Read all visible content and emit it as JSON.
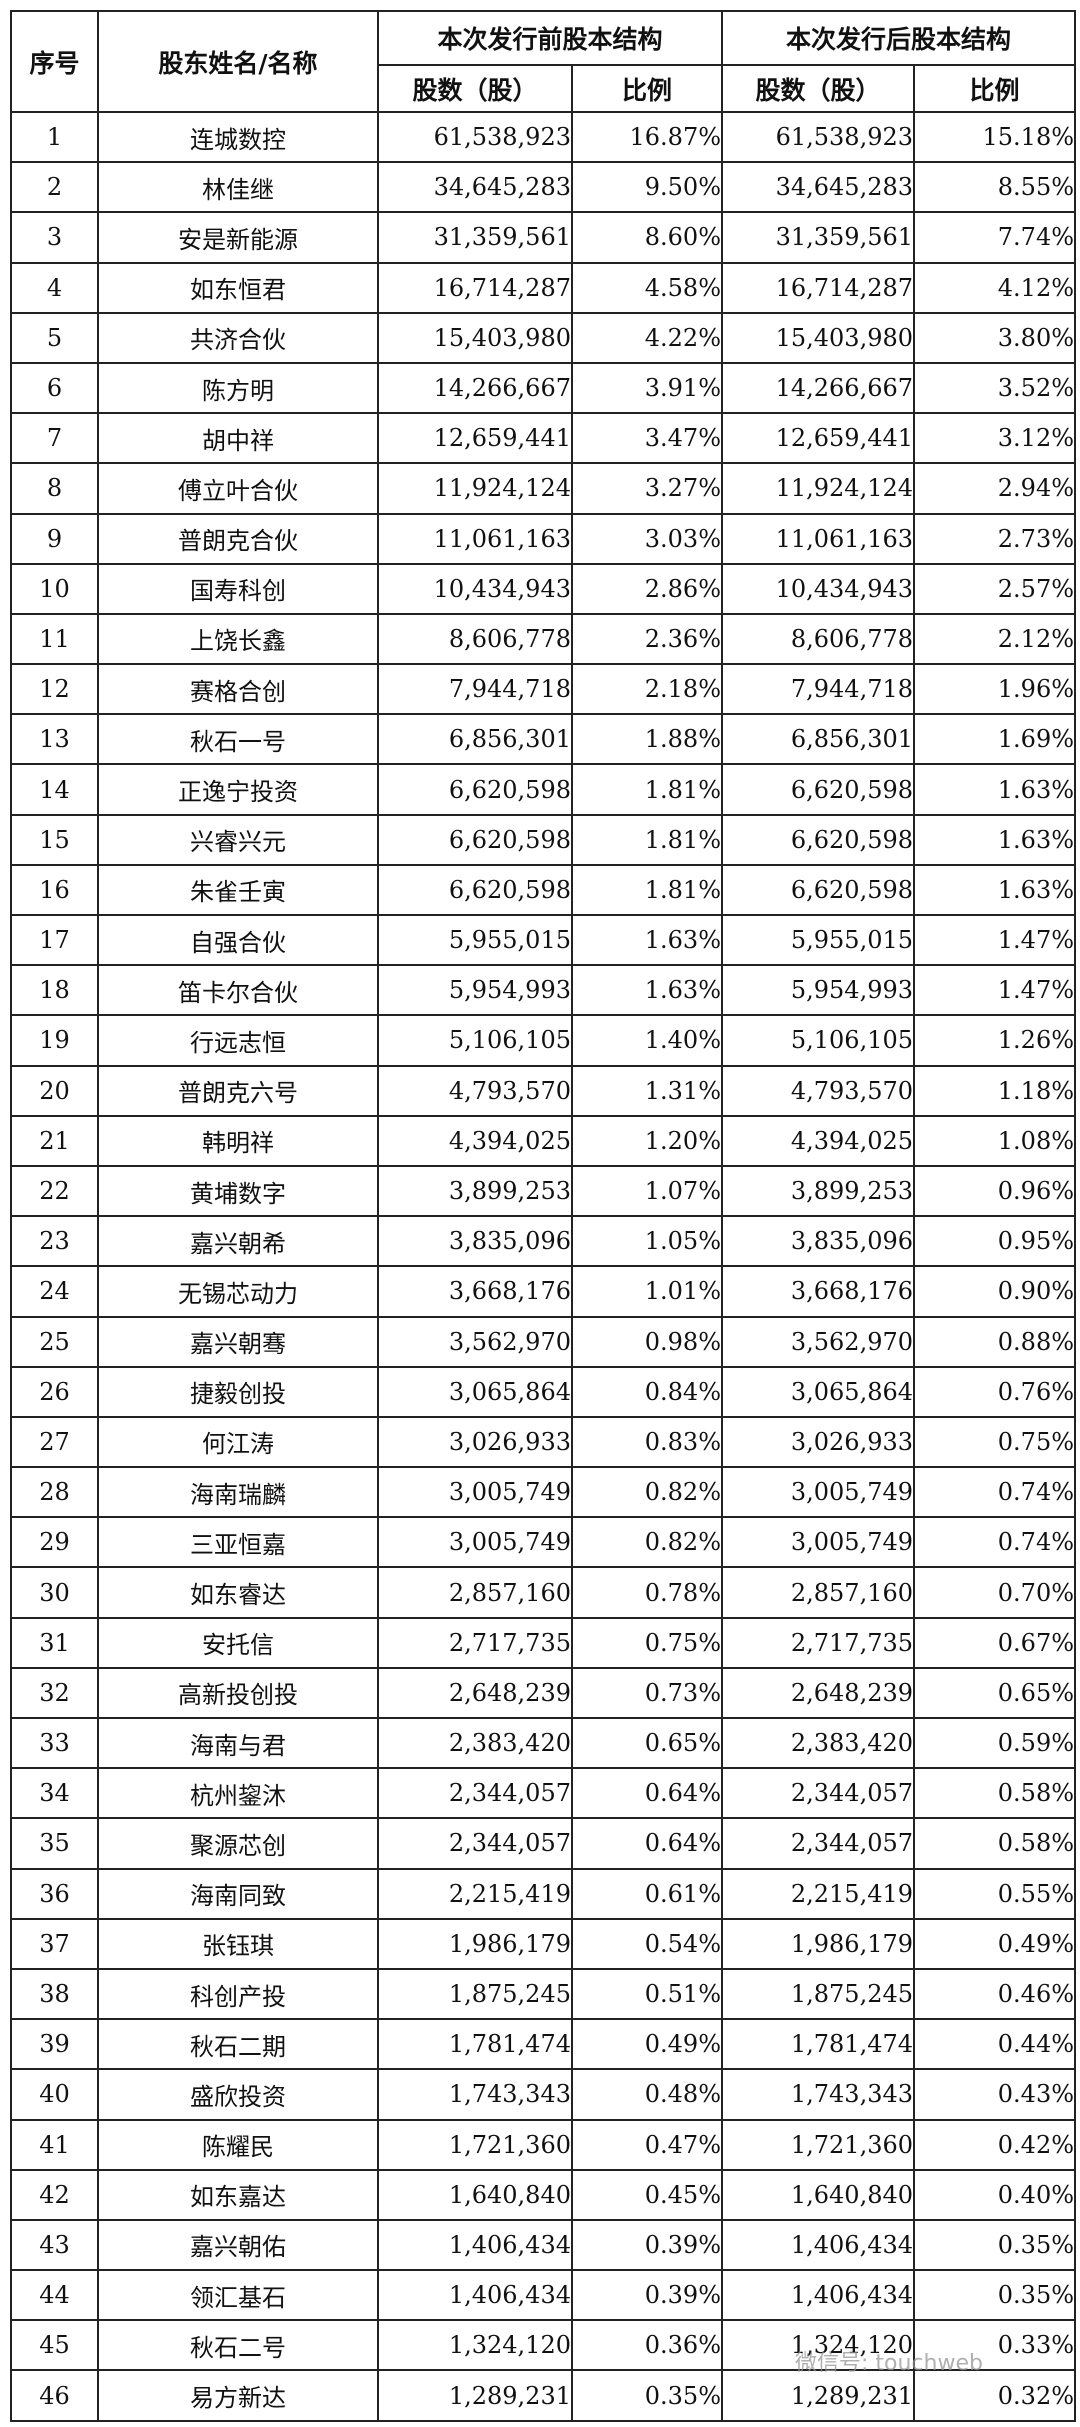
{
  "table": {
    "headers": {
      "no": "序号",
      "name": "股东姓名/名称",
      "pre": "本次发行前股本结构",
      "post": "本次发行后股本结构",
      "shares": "股数（股）",
      "ratio": "比例"
    },
    "rows": [
      {
        "no": "1",
        "name": "连城数控",
        "pre_shares": "61,538,923",
        "pre_ratio": "16.87%",
        "post_shares": "61,538,923",
        "post_ratio": "15.18%"
      },
      {
        "no": "2",
        "name": "林佳继",
        "pre_shares": "34,645,283",
        "pre_ratio": "9.50%",
        "post_shares": "34,645,283",
        "post_ratio": "8.55%"
      },
      {
        "no": "3",
        "name": "安是新能源",
        "pre_shares": "31,359,561",
        "pre_ratio": "8.60%",
        "post_shares": "31,359,561",
        "post_ratio": "7.74%"
      },
      {
        "no": "4",
        "name": "如东恒君",
        "pre_shares": "16,714,287",
        "pre_ratio": "4.58%",
        "post_shares": "16,714,287",
        "post_ratio": "4.12%"
      },
      {
        "no": "5",
        "name": "共济合伙",
        "pre_shares": "15,403,980",
        "pre_ratio": "4.22%",
        "post_shares": "15,403,980",
        "post_ratio": "3.80%"
      },
      {
        "no": "6",
        "name": "陈方明",
        "pre_shares": "14,266,667",
        "pre_ratio": "3.91%",
        "post_shares": "14,266,667",
        "post_ratio": "3.52%"
      },
      {
        "no": "7",
        "name": "胡中祥",
        "pre_shares": "12,659,441",
        "pre_ratio": "3.47%",
        "post_shares": "12,659,441",
        "post_ratio": "3.12%"
      },
      {
        "no": "8",
        "name": "傅立叶合伙",
        "pre_shares": "11,924,124",
        "pre_ratio": "3.27%",
        "post_shares": "11,924,124",
        "post_ratio": "2.94%"
      },
      {
        "no": "9",
        "name": "普朗克合伙",
        "pre_shares": "11,061,163",
        "pre_ratio": "3.03%",
        "post_shares": "11,061,163",
        "post_ratio": "2.73%"
      },
      {
        "no": "10",
        "name": "国寿科创",
        "pre_shares": "10,434,943",
        "pre_ratio": "2.86%",
        "post_shares": "10,434,943",
        "post_ratio": "2.57%"
      },
      {
        "no": "11",
        "name": "上饶长鑫",
        "pre_shares": "8,606,778",
        "pre_ratio": "2.36%",
        "post_shares": "8,606,778",
        "post_ratio": "2.12%"
      },
      {
        "no": "12",
        "name": "赛格合创",
        "pre_shares": "7,944,718",
        "pre_ratio": "2.18%",
        "post_shares": "7,944,718",
        "post_ratio": "1.96%"
      },
      {
        "no": "13",
        "name": "秋石一号",
        "pre_shares": "6,856,301",
        "pre_ratio": "1.88%",
        "post_shares": "6,856,301",
        "post_ratio": "1.69%"
      },
      {
        "no": "14",
        "name": "正逸宁投资",
        "pre_shares": "6,620,598",
        "pre_ratio": "1.81%",
        "post_shares": "6,620,598",
        "post_ratio": "1.63%"
      },
      {
        "no": "15",
        "name": "兴睿兴元",
        "pre_shares": "6,620,598",
        "pre_ratio": "1.81%",
        "post_shares": "6,620,598",
        "post_ratio": "1.63%"
      },
      {
        "no": "16",
        "name": "朱雀壬寅",
        "pre_shares": "6,620,598",
        "pre_ratio": "1.81%",
        "post_shares": "6,620,598",
        "post_ratio": "1.63%"
      },
      {
        "no": "17",
        "name": "自强合伙",
        "pre_shares": "5,955,015",
        "pre_ratio": "1.63%",
        "post_shares": "5,955,015",
        "post_ratio": "1.47%"
      },
      {
        "no": "18",
        "name": "笛卡尔合伙",
        "pre_shares": "5,954,993",
        "pre_ratio": "1.63%",
        "post_shares": "5,954,993",
        "post_ratio": "1.47%"
      },
      {
        "no": "19",
        "name": "行远志恒",
        "pre_shares": "5,106,105",
        "pre_ratio": "1.40%",
        "post_shares": "5,106,105",
        "post_ratio": "1.26%"
      },
      {
        "no": "20",
        "name": "普朗克六号",
        "pre_shares": "4,793,570",
        "pre_ratio": "1.31%",
        "post_shares": "4,793,570",
        "post_ratio": "1.18%"
      },
      {
        "no": "21",
        "name": "韩明祥",
        "pre_shares": "4,394,025",
        "pre_ratio": "1.20%",
        "post_shares": "4,394,025",
        "post_ratio": "1.08%"
      },
      {
        "no": "22",
        "name": "黄埔数字",
        "pre_shares": "3,899,253",
        "pre_ratio": "1.07%",
        "post_shares": "3,899,253",
        "post_ratio": "0.96%"
      },
      {
        "no": "23",
        "name": "嘉兴朝希",
        "pre_shares": "3,835,096",
        "pre_ratio": "1.05%",
        "post_shares": "3,835,096",
        "post_ratio": "0.95%"
      },
      {
        "no": "24",
        "name": "无锡芯动力",
        "pre_shares": "3,668,176",
        "pre_ratio": "1.01%",
        "post_shares": "3,668,176",
        "post_ratio": "0.90%"
      },
      {
        "no": "25",
        "name": "嘉兴朝骞",
        "pre_shares": "3,562,970",
        "pre_ratio": "0.98%",
        "post_shares": "3,562,970",
        "post_ratio": "0.88%"
      },
      {
        "no": "26",
        "name": "捷毅创投",
        "pre_shares": "3,065,864",
        "pre_ratio": "0.84%",
        "post_shares": "3,065,864",
        "post_ratio": "0.76%"
      },
      {
        "no": "27",
        "name": "何江涛",
        "pre_shares": "3,026,933",
        "pre_ratio": "0.83%",
        "post_shares": "3,026,933",
        "post_ratio": "0.75%"
      },
      {
        "no": "28",
        "name": "海南瑞麟",
        "pre_shares": "3,005,749",
        "pre_ratio": "0.82%",
        "post_shares": "3,005,749",
        "post_ratio": "0.74%"
      },
      {
        "no": "29",
        "name": "三亚恒嘉",
        "pre_shares": "3,005,749",
        "pre_ratio": "0.82%",
        "post_shares": "3,005,749",
        "post_ratio": "0.74%"
      },
      {
        "no": "30",
        "name": "如东睿达",
        "pre_shares": "2,857,160",
        "pre_ratio": "0.78%",
        "post_shares": "2,857,160",
        "post_ratio": "0.70%"
      },
      {
        "no": "31",
        "name": "安托信",
        "pre_shares": "2,717,735",
        "pre_ratio": "0.75%",
        "post_shares": "2,717,735",
        "post_ratio": "0.67%"
      },
      {
        "no": "32",
        "name": "高新投创投",
        "pre_shares": "2,648,239",
        "pre_ratio": "0.73%",
        "post_shares": "2,648,239",
        "post_ratio": "0.65%"
      },
      {
        "no": "33",
        "name": "海南与君",
        "pre_shares": "2,383,420",
        "pre_ratio": "0.65%",
        "post_shares": "2,383,420",
        "post_ratio": "0.59%"
      },
      {
        "no": "34",
        "name": "杭州鋆沐",
        "pre_shares": "2,344,057",
        "pre_ratio": "0.64%",
        "post_shares": "2,344,057",
        "post_ratio": "0.58%"
      },
      {
        "no": "35",
        "name": "聚源芯创",
        "pre_shares": "2,344,057",
        "pre_ratio": "0.64%",
        "post_shares": "2,344,057",
        "post_ratio": "0.58%"
      },
      {
        "no": "36",
        "name": "海南同致",
        "pre_shares": "2,215,419",
        "pre_ratio": "0.61%",
        "post_shares": "2,215,419",
        "post_ratio": "0.55%"
      },
      {
        "no": "37",
        "name": "张钰琪",
        "pre_shares": "1,986,179",
        "pre_ratio": "0.54%",
        "post_shares": "1,986,179",
        "post_ratio": "0.49%"
      },
      {
        "no": "38",
        "name": "科创产投",
        "pre_shares": "1,875,245",
        "pre_ratio": "0.51%",
        "post_shares": "1,875,245",
        "post_ratio": "0.46%"
      },
      {
        "no": "39",
        "name": "秋石二期",
        "pre_shares": "1,781,474",
        "pre_ratio": "0.49%",
        "post_shares": "1,781,474",
        "post_ratio": "0.44%"
      },
      {
        "no": "40",
        "name": "盛欣投资",
        "pre_shares": "1,743,343",
        "pre_ratio": "0.48%",
        "post_shares": "1,743,343",
        "post_ratio": "0.43%"
      },
      {
        "no": "41",
        "name": "陈耀民",
        "pre_shares": "1,721,360",
        "pre_ratio": "0.47%",
        "post_shares": "1,721,360",
        "post_ratio": "0.42%"
      },
      {
        "no": "42",
        "name": "如东嘉达",
        "pre_shares": "1,640,840",
        "pre_ratio": "0.45%",
        "post_shares": "1,640,840",
        "post_ratio": "0.40%"
      },
      {
        "no": "43",
        "name": "嘉兴朝佑",
        "pre_shares": "1,406,434",
        "pre_ratio": "0.39%",
        "post_shares": "1,406,434",
        "post_ratio": "0.35%"
      },
      {
        "no": "44",
        "name": "领汇基石",
        "pre_shares": "1,406,434",
        "pre_ratio": "0.39%",
        "post_shares": "1,406,434",
        "post_ratio": "0.35%"
      },
      {
        "no": "45",
        "name": "秋石二号",
        "pre_shares": "1,324,120",
        "pre_ratio": "0.36%",
        "post_shares": "1,324,120",
        "post_ratio": "0.33%"
      },
      {
        "no": "46",
        "name": "易方新达",
        "pre_shares": "1,289,231",
        "pre_ratio": "0.35%",
        "post_shares": "1,289,231",
        "post_ratio": "0.32%"
      }
    ]
  },
  "watermark": "微信号: touchweb"
}
